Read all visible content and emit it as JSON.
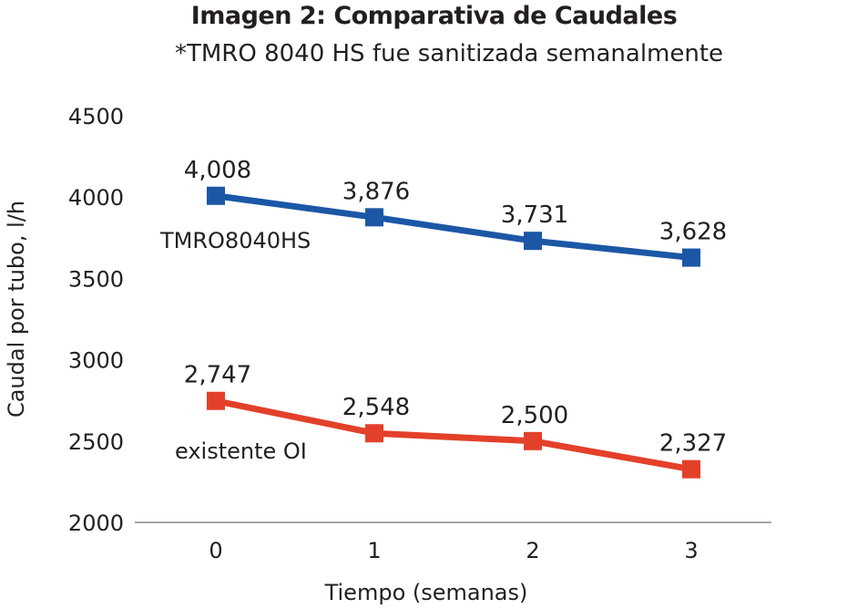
{
  "chart_data": {
    "type": "line",
    "title": "Imagen 2: Comparativa de Caudales",
    "subtitle": "*TMRO 8040 HS fue sanitizada semanalmente",
    "xlabel": "Tiempo (semanas)",
    "ylabel": "Caudal por tubo, l/h",
    "categories": [
      "0",
      "1",
      "2",
      "3"
    ],
    "x": [
      0,
      1,
      2,
      3
    ],
    "ylim": [
      2000,
      4500
    ],
    "yticks": [
      "2000",
      "2500",
      "3000",
      "3500",
      "4000",
      "4500"
    ],
    "ytick_values": [
      2000,
      2500,
      3000,
      3500,
      4000,
      4500
    ],
    "grid": false,
    "series": [
      {
        "name": "TMRO8040HS",
        "color": "#1c57a6",
        "marker": "square",
        "values": [
          4008,
          3876,
          3731,
          3628
        ],
        "labels": [
          "4,008",
          "3,876",
          "3,731",
          "3,628"
        ]
      },
      {
        "name": "existente OI",
        "color": "#e3402a",
        "marker": "square",
        "values": [
          2747,
          2548,
          2500,
          2327
        ],
        "labels": [
          "2,747",
          "2,548",
          "2,500",
          "2,327"
        ]
      }
    ]
  }
}
